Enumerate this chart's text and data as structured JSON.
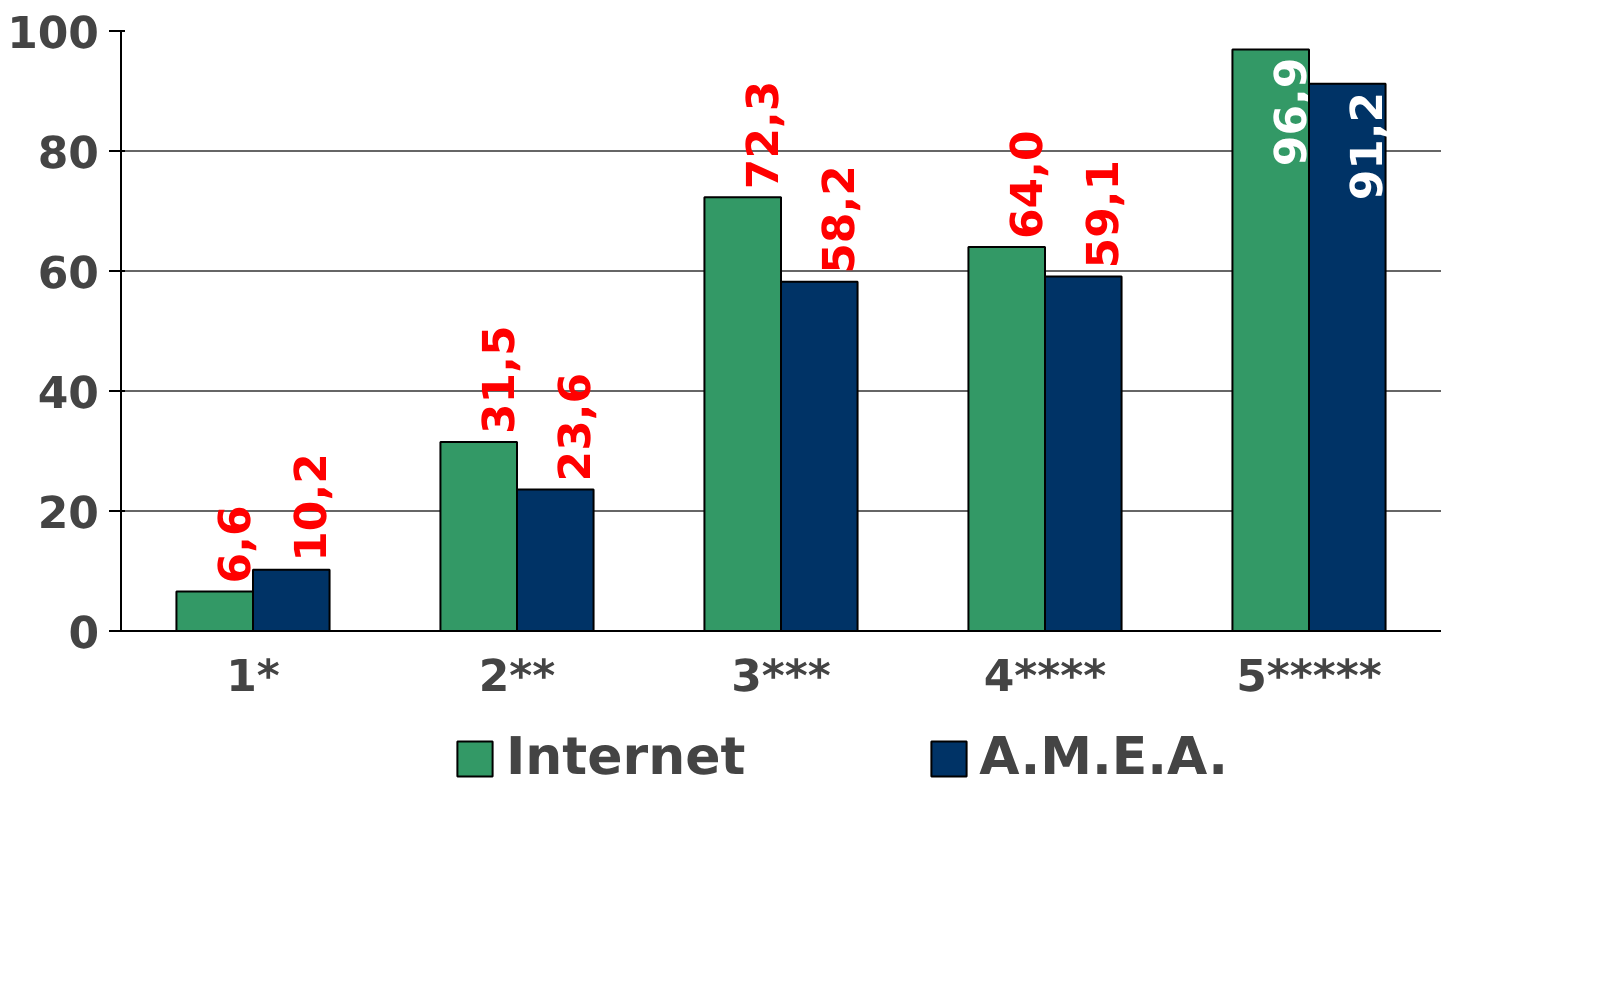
{
  "chart_data": {
    "type": "bar",
    "categories": [
      "1*",
      "2**",
      "3***",
      "4****",
      "5*****"
    ],
    "series": [
      {
        "name": "Internet",
        "color": "#339966",
        "values": [
          6.6,
          31.5,
          72.3,
          64.0,
          96.9
        ],
        "value_labels": [
          "6,6",
          "31,5",
          "72,3",
          "64,0",
          "96,9"
        ]
      },
      {
        "name": "A.M.E.A.",
        "color": "#003366",
        "values": [
          10.2,
          23.6,
          58.2,
          59.1,
          91.2
        ],
        "value_labels": [
          "10,2",
          "23,6",
          "58,2",
          "59,1",
          "91,2"
        ]
      }
    ],
    "ylim": [
      0,
      100
    ],
    "yticks": [
      0,
      20,
      40,
      60,
      80,
      100
    ],
    "grid": "y",
    "legend": "bottom"
  }
}
